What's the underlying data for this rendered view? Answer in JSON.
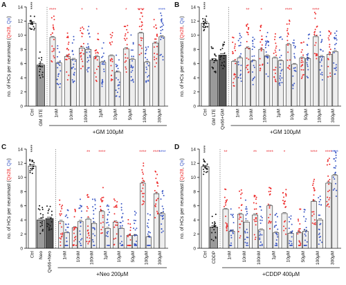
{
  "colors": {
    "red": "#ee2b2b",
    "blue": "#3a57c4",
    "black": "#111111",
    "bar_fill": "#eeeeee",
    "sig_red": "#e8242a",
    "sig_blue": "#2d4bd0"
  },
  "y_title": {
    "pre": "no. of HCs per neuromast (",
    "red": "Qx28",
    "sep": ", ",
    "blue": "Qx",
    "post": ")"
  },
  "chart_data": [
    {
      "type": "bar",
      "panel": "A",
      "treatment": "+GM 100μM",
      "ylim": [
        0,
        14
      ],
      "yticks": [
        0,
        2,
        4,
        6,
        8,
        10,
        12,
        14
      ],
      "controls": [
        {
          "label": "Ctrl",
          "value": 11.7,
          "color": "black",
          "fill": "#ffffff"
        },
        {
          "label": "GM STE",
          "value": 5.8,
          "color": "black",
          "fill": "#9a9a9a"
        }
      ],
      "groups": [
        "1nM",
        "10nM",
        "100nM",
        "1μM",
        "10μM",
        "50μM",
        "100μM",
        "300μM"
      ],
      "series": [
        {
          "name": "Qx28",
          "values": [
            9.7,
            7.0,
            8.2,
            7.0,
            7.1,
            8.1,
            10.3,
            8.9
          ]
        },
        {
          "name": "Qx",
          "values": [
            6.1,
            6.6,
            8.0,
            6.2,
            4.8,
            6.6,
            6.2,
            9.8
          ]
        }
      ],
      "control_sig": "****",
      "sig": [
        [
          "****",
          ""
        ],
        [
          "",
          ""
        ],
        [
          "*",
          ""
        ],
        [
          "*",
          ""
        ],
        [
          "",
          ""
        ],
        [
          "*",
          ""
        ],
        [
          "****",
          ""
        ],
        [
          "",
          "****"
        ]
      ]
    },
    {
      "type": "bar",
      "panel": "B",
      "treatment": "+GM 100μM",
      "ylim": [
        0,
        14
      ],
      "yticks": [
        0,
        2,
        4,
        6,
        8,
        10,
        12,
        14
      ],
      "controls": [
        {
          "label": "Ctrl",
          "value": 11.7,
          "color": "black",
          "fill": "#ffffff"
        },
        {
          "label": "GM LTE",
          "value": 6.5,
          "color": "black",
          "fill": "#9a9a9a"
        },
        {
          "label": "Qx66+GM",
          "value": 7.2,
          "color": "black",
          "fill": "#555555"
        }
      ],
      "groups": [
        "1nM",
        "10nM",
        "100nM",
        "1μM",
        "10μM",
        "50μM",
        "100μM",
        "300μM"
      ],
      "series": [
        {
          "name": "Qx28",
          "values": [
            6.3,
            8.2,
            8.0,
            6.8,
            8.7,
            6.8,
            9.8,
            7.3
          ]
        },
        {
          "name": "Qx",
          "values": [
            6.8,
            6.4,
            7.1,
            6.4,
            5.9,
            6.7,
            7.0,
            7.7
          ]
        }
      ],
      "control_sig": "****",
      "sig": [
        [
          "",
          ""
        ],
        [
          "**",
          ""
        ],
        [
          "*",
          ""
        ],
        [
          "",
          ""
        ],
        [
          "****",
          ""
        ],
        [
          "",
          ""
        ],
        [
          "****",
          ""
        ],
        [
          "",
          ""
        ]
      ]
    },
    {
      "type": "bar",
      "panel": "C",
      "treatment": "+Neo 200μM",
      "ylim": [
        0,
        14
      ],
      "yticks": [
        0,
        2,
        4,
        6,
        8,
        10,
        12,
        14
      ],
      "controls": [
        {
          "label": "Ctrl",
          "value": 11.6,
          "color": "black",
          "fill": "#ffffff"
        },
        {
          "label": "Neo",
          "value": 4.0,
          "color": "black",
          "fill": "#9a9a9a"
        },
        {
          "label": "Qx66+Neo",
          "value": 4.2,
          "color": "black",
          "fill": "#555555"
        }
      ],
      "groups": [
        "1nM",
        "10nM",
        "100nM",
        "1μM",
        "10μM",
        "50μM",
        "100μM",
        "300μM"
      ],
      "series": [
        {
          "name": "Qx28",
          "values": [
            3.8,
            2.9,
            4.1,
            5.2,
            3.7,
            1.8,
            9.2,
            7.7
          ]
        },
        {
          "name": "Qx",
          "values": [
            2.2,
            3.8,
            3.5,
            2.8,
            2.8,
            1.8,
            1.6,
            4.9
          ]
        }
      ],
      "control_sig": "****",
      "sig": [
        [
          "",
          ""
        ],
        [
          "",
          ""
        ],
        [
          "**",
          ""
        ],
        [
          "****",
          ""
        ],
        [
          "",
          ""
        ],
        [
          "",
          ""
        ],
        [
          "****",
          ""
        ],
        [
          "****",
          "****"
        ]
      ]
    },
    {
      "type": "bar",
      "panel": "D",
      "treatment": "+CDDP 400μM",
      "ylim": [
        0,
        14
      ],
      "yticks": [
        0,
        2,
        4,
        6,
        8,
        10,
        12,
        14
      ],
      "controls": [
        {
          "label": "Ctrl",
          "value": 11.5,
          "color": "black",
          "fill": "#ffffff"
        },
        {
          "label": "CDDP",
          "value": 3.0,
          "color": "black",
          "fill": "#9a9a9a"
        }
      ],
      "groups": [
        "1nM",
        "10nM",
        "100nM",
        "1μM",
        "10μM",
        "50μM",
        "100μM",
        "300μM"
      ],
      "series": [
        {
          "name": "Qx28",
          "values": [
            5.5,
            4.8,
            4.7,
            6.0,
            4.9,
            2.2,
            6.6,
            9.2
          ]
        },
        {
          "name": "Qx",
          "values": [
            2.4,
            3.7,
            2.6,
            2.2,
            2.1,
            2.4,
            4.0,
            10.3
          ]
        }
      ],
      "control_sig": "****",
      "sig": [
        [
          "**",
          ""
        ],
        [
          "",
          ""
        ],
        [
          "**",
          ""
        ],
        [
          "****",
          ""
        ],
        [
          "*",
          ""
        ],
        [
          "",
          ""
        ],
        [
          "****",
          ""
        ],
        [
          "****",
          "****"
        ]
      ]
    }
  ]
}
